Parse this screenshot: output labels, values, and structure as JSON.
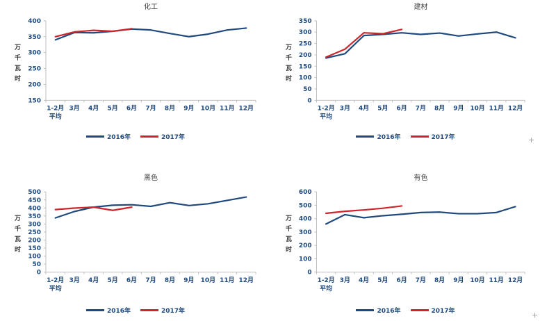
{
  "colors": {
    "series_2016": "#1F497D",
    "series_2017": "#CC252C",
    "axis_line": "#BFBFBF",
    "tick_label": "#1F497D",
    "chart_title": "#404040"
  },
  "y_axis_title": "万千瓦时",
  "x_tick_lines": [
    [
      "1-2月",
      "平均"
    ],
    [
      "3月"
    ],
    [
      "4月"
    ],
    [
      "5月"
    ],
    [
      "6月"
    ],
    [
      "7月"
    ],
    [
      "8月"
    ],
    [
      "9月"
    ],
    [
      "10月"
    ],
    [
      "11月"
    ],
    [
      "12月"
    ]
  ],
  "artifacts": {
    "plus_marker": "+"
  },
  "chart_data": [
    {
      "type": "line",
      "title": "化工",
      "ylabel": "万千瓦时",
      "categories": [
        "1-2月平均",
        "3月",
        "4月",
        "5月",
        "6月",
        "7月",
        "8月",
        "9月",
        "10月",
        "11月",
        "12月"
      ],
      "ylim": [
        150,
        400
      ],
      "ytick_step": 50,
      "legend_position": "bottom",
      "series": [
        {
          "name": "2016年",
          "color": "#1F497D",
          "values": [
            340,
            363,
            362,
            367,
            374,
            371,
            360,
            350,
            358,
            371,
            377
          ]
        },
        {
          "name": "2017年",
          "color": "#CC252C",
          "values": [
            350,
            365,
            370,
            367,
            375
          ]
        }
      ]
    },
    {
      "type": "line",
      "title": "建材",
      "ylabel": "万千瓦时",
      "categories": [
        "1-2月平均",
        "3月",
        "4月",
        "5月",
        "6月",
        "7月",
        "8月",
        "9月",
        "10月",
        "11月",
        "12月"
      ],
      "ylim": [
        0,
        350
      ],
      "ytick_step": 50,
      "legend_position": "bottom",
      "series": [
        {
          "name": "2016年",
          "color": "#1F497D",
          "values": [
            186,
            205,
            285,
            290,
            297,
            290,
            296,
            283,
            292,
            300,
            275
          ]
        },
        {
          "name": "2017年",
          "color": "#CC252C",
          "values": [
            190,
            225,
            297,
            293,
            312
          ]
        }
      ]
    },
    {
      "type": "line",
      "title": "黑色",
      "ylabel": "万千瓦时",
      "categories": [
        "1-2月平均",
        "3月",
        "4月",
        "5月",
        "6月",
        "7月",
        "8月",
        "9月",
        "10月",
        "11月",
        "12月"
      ],
      "ylim": [
        0,
        500
      ],
      "ytick_step": 50,
      "legend_position": "bottom",
      "series": [
        {
          "name": "2016年",
          "color": "#1F497D",
          "values": [
            338,
            378,
            405,
            417,
            420,
            410,
            433,
            415,
            426,
            447,
            468
          ]
        },
        {
          "name": "2017年",
          "color": "#CC252C",
          "values": [
            390,
            399,
            405,
            385,
            405
          ]
        }
      ]
    },
    {
      "type": "line",
      "title": "有色",
      "ylabel": "万千瓦时",
      "categories": [
        "1-2月平均",
        "3月",
        "4月",
        "5月",
        "6月",
        "7月",
        "8月",
        "9月",
        "10月",
        "11月",
        "12月"
      ],
      "ylim": [
        0,
        600
      ],
      "ytick_step": 100,
      "legend_position": "bottom",
      "series": [
        {
          "name": "2016年",
          "color": "#1F497D",
          "values": [
            360,
            430,
            407,
            422,
            433,
            446,
            449,
            437,
            437,
            446,
            490
          ]
        },
        {
          "name": "2017年",
          "color": "#CC252C",
          "values": [
            440,
            455,
            465,
            478,
            495
          ]
        }
      ]
    }
  ]
}
